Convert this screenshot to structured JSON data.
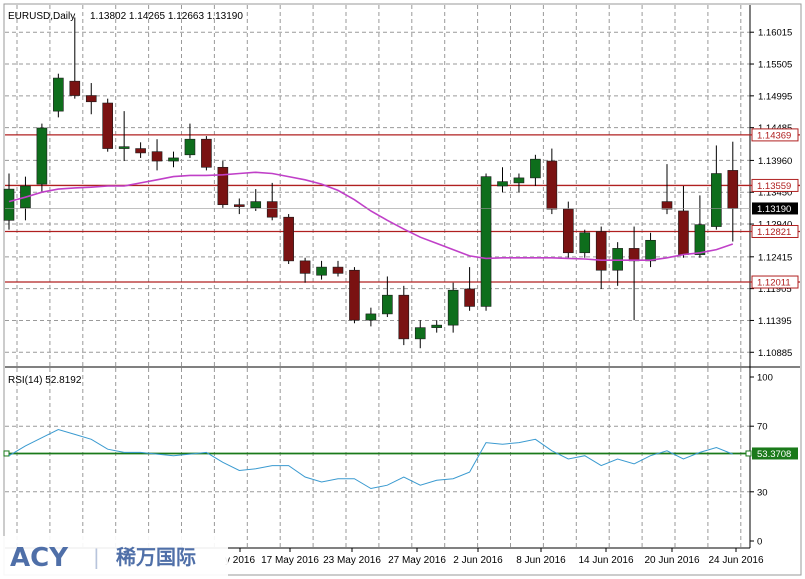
{
  "header": {
    "symbol_label": "EURUSD,Daily",
    "ohlc_label": "1.13802 1.14265 1.12663 1.13190"
  },
  "rsi_header": {
    "label": "RSI(14) 52.8192"
  },
  "watermark": {
    "brand": "ACY",
    "separator": "|",
    "chinese": "稀万国际"
  },
  "colors": {
    "bull": "#0e6e1c",
    "bear": "#7a1212",
    "ma": "#c040c8",
    "rsi": "#3a9ad0",
    "level_line": "#b02020",
    "rsi_level": "#1a7a1a",
    "grid": "#9a9a9a"
  },
  "chart_data": [
    {
      "type": "candlestick",
      "title": "EURUSD,Daily",
      "ylim": [
        1.10649,
        1.16451
      ],
      "y_ticks": [
        "1.16015",
        "1.15505",
        "1.14995",
        "1.14485",
        "1.13960",
        "1.13450",
        "1.12940",
        "1.12415",
        "1.11905",
        "1.11395",
        "1.10885"
      ],
      "x_tick_labels": [
        "y 2016",
        "17 May 2016",
        "23 May 2016",
        "27 May 2016",
        "2 Jun 2016",
        "8 Jun 2016",
        "14 Jun 2016",
        "20 Jun 2016",
        "24 Jun 2016"
      ],
      "ohlc": [
        {
          "o": 1.13,
          "h": 1.1375,
          "l": 1.1285,
          "c": 1.135
        },
        {
          "o": 1.132,
          "h": 1.137,
          "l": 1.13,
          "c": 1.1355
        },
        {
          "o": 1.1358,
          "h": 1.1455,
          "l": 1.1345,
          "c": 1.1448
        },
        {
          "o": 1.1475,
          "h": 1.1535,
          "l": 1.1465,
          "c": 1.1528
        },
        {
          "o": 1.1523,
          "h": 1.1625,
          "l": 1.1495,
          "c": 1.15
        },
        {
          "o": 1.15,
          "h": 1.152,
          "l": 1.147,
          "c": 1.149
        },
        {
          "o": 1.1488,
          "h": 1.1495,
          "l": 1.141,
          "c": 1.1415
        },
        {
          "o": 1.1415,
          "h": 1.1475,
          "l": 1.1395,
          "c": 1.1418
        },
        {
          "o": 1.1415,
          "h": 1.1425,
          "l": 1.14,
          "c": 1.1408
        },
        {
          "o": 1.141,
          "h": 1.143,
          "l": 1.138,
          "c": 1.1395
        },
        {
          "o": 1.1395,
          "h": 1.141,
          "l": 1.1385,
          "c": 1.14
        },
        {
          "o": 1.1405,
          "h": 1.1455,
          "l": 1.14,
          "c": 1.143
        },
        {
          "o": 1.143,
          "h": 1.1435,
          "l": 1.138,
          "c": 1.1385
        },
        {
          "o": 1.1385,
          "h": 1.1395,
          "l": 1.132,
          "c": 1.1325
        },
        {
          "o": 1.1325,
          "h": 1.1335,
          "l": 1.131,
          "c": 1.1322
        },
        {
          "o": 1.132,
          "h": 1.135,
          "l": 1.1315,
          "c": 1.133
        },
        {
          "o": 1.133,
          "h": 1.136,
          "l": 1.13,
          "c": 1.1305
        },
        {
          "o": 1.1305,
          "h": 1.131,
          "l": 1.123,
          "c": 1.1235
        },
        {
          "o": 1.1235,
          "h": 1.124,
          "l": 1.12,
          "c": 1.1215
        },
        {
          "o": 1.1212,
          "h": 1.1235,
          "l": 1.1205,
          "c": 1.1225
        },
        {
          "o": 1.1225,
          "h": 1.1235,
          "l": 1.121,
          "c": 1.1215
        },
        {
          "o": 1.122,
          "h": 1.1225,
          "l": 1.1135,
          "c": 1.114
        },
        {
          "o": 1.114,
          "h": 1.116,
          "l": 1.113,
          "c": 1.115
        },
        {
          "o": 1.115,
          "h": 1.121,
          "l": 1.1145,
          "c": 1.118
        },
        {
          "o": 1.118,
          "h": 1.1195,
          "l": 1.11,
          "c": 1.111
        },
        {
          "o": 1.111,
          "h": 1.114,
          "l": 1.1095,
          "c": 1.1128
        },
        {
          "o": 1.1128,
          "h": 1.114,
          "l": 1.112,
          "c": 1.1132
        },
        {
          "o": 1.1132,
          "h": 1.12,
          "l": 1.112,
          "c": 1.1188
        },
        {
          "o": 1.119,
          "h": 1.1225,
          "l": 1.1155,
          "c": 1.1162
        },
        {
          "o": 1.1162,
          "h": 1.1375,
          "l": 1.1155,
          "c": 1.137
        },
        {
          "o": 1.1355,
          "h": 1.1385,
          "l": 1.1345,
          "c": 1.1362
        },
        {
          "o": 1.136,
          "h": 1.1375,
          "l": 1.1345,
          "c": 1.1368
        },
        {
          "o": 1.1368,
          "h": 1.1405,
          "l": 1.1355,
          "c": 1.1398
        },
        {
          "o": 1.1395,
          "h": 1.1415,
          "l": 1.131,
          "c": 1.1318
        },
        {
          "o": 1.1318,
          "h": 1.133,
          "l": 1.124,
          "c": 1.1248
        },
        {
          "o": 1.1248,
          "h": 1.1285,
          "l": 1.124,
          "c": 1.128
        },
        {
          "o": 1.1282,
          "h": 1.129,
          "l": 1.119,
          "c": 1.122
        },
        {
          "o": 1.122,
          "h": 1.1265,
          "l": 1.1195,
          "c": 1.1255
        },
        {
          "o": 1.1255,
          "h": 1.129,
          "l": 1.114,
          "c": 1.1235
        },
        {
          "o": 1.1235,
          "h": 1.128,
          "l": 1.1225,
          "c": 1.1268
        },
        {
          "o": 1.133,
          "h": 1.139,
          "l": 1.131,
          "c": 1.1318
        },
        {
          "o": 1.1315,
          "h": 1.1355,
          "l": 1.124,
          "c": 1.1245
        },
        {
          "o": 1.1245,
          "h": 1.134,
          "l": 1.124,
          "c": 1.1293
        },
        {
          "o": 1.129,
          "h": 1.142,
          "l": 1.1285,
          "c": 1.1375
        },
        {
          "o": 1.138,
          "h": 1.1426,
          "l": 1.1266,
          "c": 1.1319
        }
      ],
      "moving_average": [
        1.133,
        1.1337,
        1.1345,
        1.135,
        1.1352,
        1.1353,
        1.1355,
        1.1355,
        1.136,
        1.1365,
        1.137,
        1.1372,
        1.1372,
        1.1373,
        1.1375,
        1.1377,
        1.1375,
        1.137,
        1.1365,
        1.1358,
        1.1348,
        1.1333,
        1.1315,
        1.13,
        1.1286,
        1.1273,
        1.1263,
        1.1253,
        1.1243,
        1.1239,
        1.124,
        1.124,
        1.124,
        1.124,
        1.1239,
        1.1238,
        1.1236,
        1.1236,
        1.1236,
        1.1236,
        1.124,
        1.1245,
        1.1248,
        1.1253,
        1.1262
      ],
      "horizontal_levels": [
        "1.14369",
        "1.13559",
        "1.12821",
        "1.12011"
      ],
      "current_price_label": "1.13190"
    },
    {
      "type": "line",
      "title": "RSI(14) 52.8192",
      "ylim": [
        0,
        100
      ],
      "y_ticks": [
        "100",
        "70",
        "30",
        "0"
      ],
      "level": "53.3708",
      "values": [
        52,
        58,
        63,
        68,
        65,
        62,
        56,
        54,
        54,
        53,
        52,
        53,
        54,
        48,
        43,
        44,
        46,
        46,
        39,
        36,
        38,
        38,
        32,
        34,
        39,
        34,
        37,
        38,
        42,
        60,
        59,
        60,
        62,
        55,
        50,
        52,
        46,
        50,
        47,
        52,
        55,
        50,
        54,
        57,
        53
      ]
    }
  ]
}
